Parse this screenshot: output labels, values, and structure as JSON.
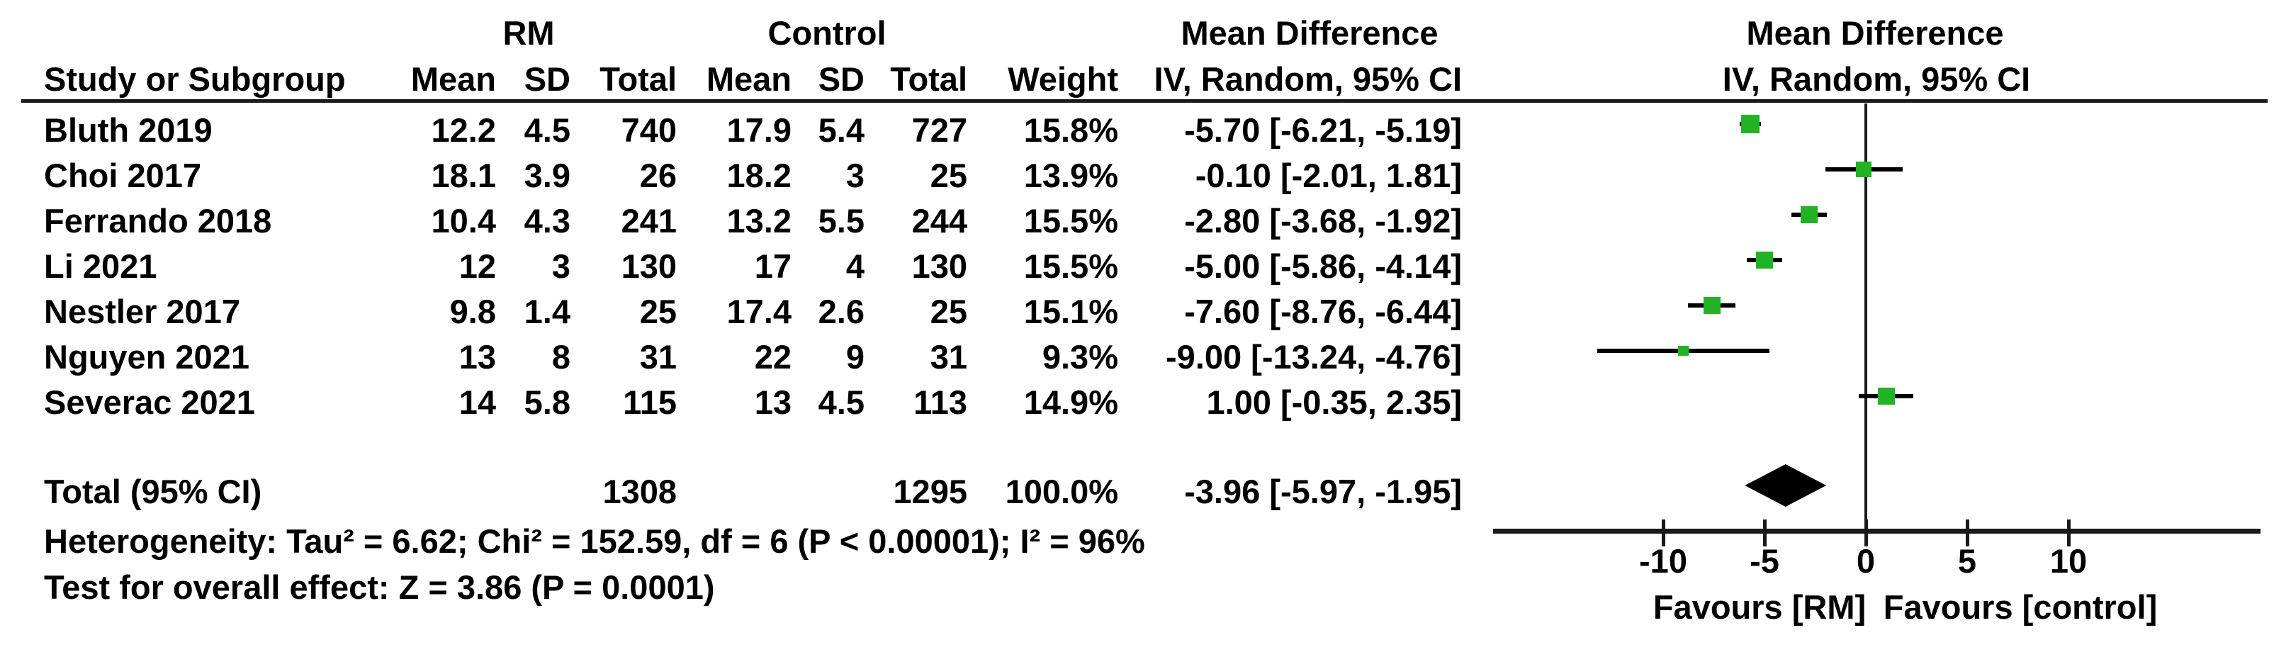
{
  "table": {
    "group_headers": {
      "rm": "RM",
      "control": "Control",
      "effect": "Mean Difference"
    },
    "column_headers": {
      "study": "Study or Subgroup",
      "rm_mean": "Mean",
      "rm_sd": "SD",
      "rm_total": "Total",
      "c_mean": "Mean",
      "c_sd": "SD",
      "c_total": "Total",
      "weight": "Weight",
      "ci": "IV, Random, 95% CI"
    },
    "total_row": {
      "label": "Total (95% CI)",
      "rm_total": "1308",
      "control_total": "1295",
      "weight": "100.0%",
      "ci_label": "-3.96 [-5.97, -1.95]"
    },
    "heterogeneity": "Heterogeneity: Tau² = 6.62; Chi² = 152.59, df = 6 (P < 0.00001); I² = 96%",
    "overall_effect": "Test for overall effect: Z = 3.86 (P = 0.0001)"
  },
  "plot": {
    "header_line1": "Mean Difference",
    "header_line2": "IV, Random, 95% CI",
    "favours_left": "Favours [RM]",
    "favours_right": "Favours [control]",
    "marker_color": "#22B324",
    "line_color": "#000000",
    "diamond_color": "#000000"
  },
  "chart_data": {
    "type": "scatter",
    "subtype": "forest-plot-mean-difference",
    "title": "Mean Difference — IV, Random, 95% CI",
    "xlabel_left": "Favours [RM]",
    "xlabel_right": "Favours [control]",
    "x_ticks": [
      -10,
      -5,
      0,
      5,
      10
    ],
    "xlim": [
      -18.4,
      19.5
    ],
    "grid": false,
    "studies": [
      {
        "name": "Bluth 2019",
        "rm_mean": "12.2",
        "rm_sd": "4.5",
        "rm_total": "740",
        "c_mean": "17.9",
        "c_sd": "5.4",
        "c_total": "727",
        "weight": "15.8%",
        "weight_pct": 15.8,
        "md": -5.7,
        "lo": -6.21,
        "hi": -5.19,
        "ci_label": "-5.70 [-6.21, -5.19]"
      },
      {
        "name": "Choi 2017",
        "rm_mean": "18.1",
        "rm_sd": "3.9",
        "rm_total": "26",
        "c_mean": "18.2",
        "c_sd": "3",
        "c_total": "25",
        "weight": "13.9%",
        "weight_pct": 13.9,
        "md": -0.1,
        "lo": -2.01,
        "hi": 1.81,
        "ci_label": "-0.10 [-2.01, 1.81]"
      },
      {
        "name": "Ferrando 2018",
        "rm_mean": "10.4",
        "rm_sd": "4.3",
        "rm_total": "241",
        "c_mean": "13.2",
        "c_sd": "5.5",
        "c_total": "244",
        "weight": "15.5%",
        "weight_pct": 15.5,
        "md": -2.8,
        "lo": -3.68,
        "hi": -1.92,
        "ci_label": "-2.80 [-3.68, -1.92]"
      },
      {
        "name": "Li 2021",
        "rm_mean": "12",
        "rm_sd": "3",
        "rm_total": "130",
        "c_mean": "17",
        "c_sd": "4",
        "c_total": "130",
        "weight": "15.5%",
        "weight_pct": 15.5,
        "md": -5.0,
        "lo": -5.86,
        "hi": -4.14,
        "ci_label": "-5.00 [-5.86, -4.14]"
      },
      {
        "name": "Nestler 2017",
        "rm_mean": "9.8",
        "rm_sd": "1.4",
        "rm_total": "25",
        "c_mean": "17.4",
        "c_sd": "2.6",
        "c_total": "25",
        "weight": "15.1%",
        "weight_pct": 15.1,
        "md": -7.6,
        "lo": -8.76,
        "hi": -6.44,
        "ci_label": "-7.60 [-8.76, -6.44]"
      },
      {
        "name": "Nguyen 2021",
        "rm_mean": "13",
        "rm_sd": "8",
        "rm_total": "31",
        "c_mean": "22",
        "c_sd": "9",
        "c_total": "31",
        "weight": "9.3%",
        "weight_pct": 9.3,
        "md": -9.0,
        "lo": -13.24,
        "hi": -4.76,
        "ci_label": "-9.00 [-13.24, -4.76]"
      },
      {
        "name": "Severac 2021",
        "rm_mean": "14",
        "rm_sd": "5.8",
        "rm_total": "115",
        "c_mean": "13",
        "c_sd": "4.5",
        "c_total": "113",
        "weight": "14.9%",
        "weight_pct": 14.9,
        "md": 1.0,
        "lo": -0.35,
        "hi": 2.35,
        "ci_label": "1.00 [-0.35, 2.35]"
      }
    ],
    "total": {
      "md": -3.96,
      "lo": -5.97,
      "hi": -1.95,
      "weight_pct": 100.0
    },
    "heterogeneity": {
      "tau2": 6.62,
      "chi2": 152.59,
      "df": 6,
      "p": "< 0.00001",
      "i2_pct": 96
    },
    "overall_effect": {
      "z": 3.86,
      "p": "= 0.0001"
    }
  }
}
